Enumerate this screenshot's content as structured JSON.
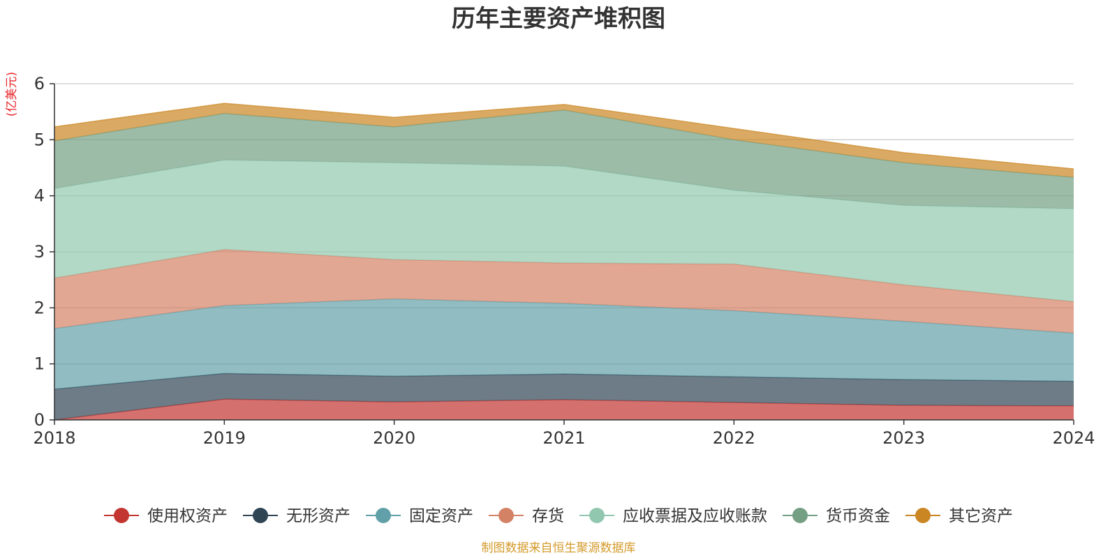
{
  "chart_data": {
    "type": "area",
    "stacked": true,
    "title": "历年主要资产堆积图",
    "unit_label": "(亿美元)",
    "source_note": "制图数据来自恒生聚源数据库",
    "x": [
      "2018",
      "2019",
      "2020",
      "2021",
      "2022",
      "2023",
      "2024"
    ],
    "ylim": [
      0,
      6
    ],
    "yticks": [
      "0",
      "1",
      "2",
      "3",
      "4",
      "5",
      "6"
    ],
    "grid": true,
    "legend_position": "bottom",
    "series": [
      {
        "name": "使用权资产",
        "color": "#c23531",
        "values": [
          0.0,
          0.37,
          0.32,
          0.36,
          0.31,
          0.26,
          0.25
        ]
      },
      {
        "name": "无形资产",
        "color": "#2f4554",
        "values": [
          0.55,
          0.46,
          0.46,
          0.46,
          0.46,
          0.46,
          0.44
        ]
      },
      {
        "name": "固定资产",
        "color": "#61a0a8",
        "values": [
          1.08,
          1.21,
          1.38,
          1.26,
          1.18,
          1.04,
          0.86
        ]
      },
      {
        "name": "存货",
        "color": "#d48265",
        "values": [
          0.9,
          1.0,
          0.7,
          0.72,
          0.83,
          0.65,
          0.56
        ]
      },
      {
        "name": "应收票据及应收账款",
        "color": "#91c7ae",
        "values": [
          1.6,
          1.6,
          1.73,
          1.73,
          1.32,
          1.42,
          1.66
        ]
      },
      {
        "name": "货币资金",
        "color": "#749f83",
        "values": [
          0.85,
          0.83,
          0.64,
          1.0,
          0.9,
          0.76,
          0.56
        ]
      },
      {
        "name": "其它资产",
        "color": "#ca8622",
        "values": [
          0.25,
          0.18,
          0.17,
          0.1,
          0.2,
          0.18,
          0.15
        ]
      }
    ]
  }
}
